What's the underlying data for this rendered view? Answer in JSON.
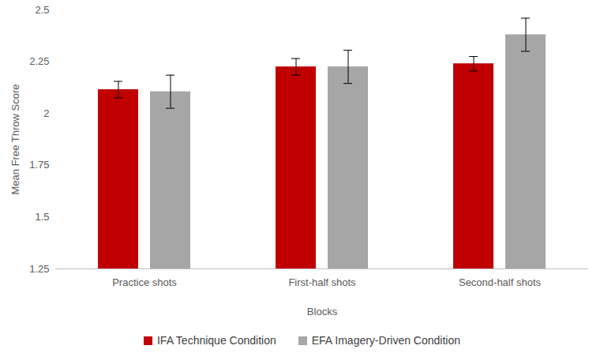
{
  "chart_data": {
    "type": "bar",
    "categories": [
      "Practice shots",
      "First-half shots",
      "Second-half shots"
    ],
    "series": [
      {
        "name": "IFA Technique Condition",
        "color": "#C00000",
        "values": [
          2.115,
          2.225,
          2.24
        ],
        "errors": [
          0.04,
          0.04,
          0.035
        ]
      },
      {
        "name": "EFA Imagery-Driven Condition",
        "color": "#A6A6A6",
        "values": [
          2.105,
          2.225,
          2.38
        ],
        "errors": [
          0.08,
          0.08,
          0.08
        ]
      }
    ],
    "x_label": "Blocks",
    "y_label": "Mean Free Throw Score",
    "ylim": [
      1.25,
      2.5
    ],
    "yticks": [
      1.25,
      1.5,
      1.75,
      2,
      2.25,
      2.5
    ],
    "grid": false,
    "legend": "bottom"
  }
}
